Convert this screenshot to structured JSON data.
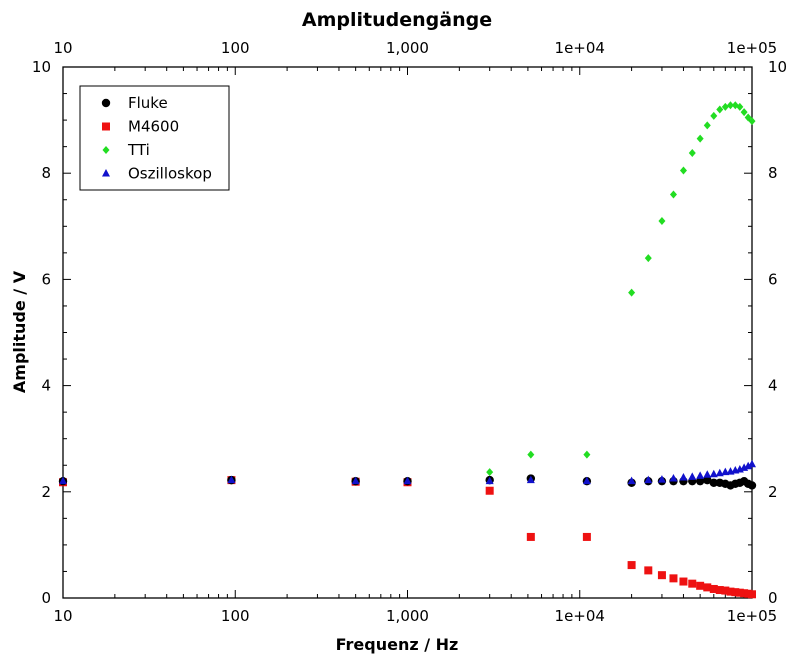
{
  "chart_data": {
    "type": "scatter",
    "title": "Amplitudengänge",
    "xlabel": "Frequenz / Hz",
    "ylabel": "Amplitude / V",
    "xscale": "log",
    "xlim": [
      10,
      100000
    ],
    "ylim": [
      0,
      10
    ],
    "x_tick_labels": [
      "10",
      "100",
      "1,000",
      "1e+04",
      "1e+05"
    ],
    "x_tick_values": [
      10,
      100,
      1000,
      10000,
      100000
    ],
    "y_ticks": [
      0,
      2,
      4,
      6,
      8,
      10
    ],
    "grid": false,
    "legend_position": "top-left",
    "series": [
      {
        "name": "Fluke",
        "marker": "circle",
        "color": "#000000",
        "x": [
          10,
          95,
          500,
          1000,
          3000,
          5200,
          11000,
          20000,
          25000,
          30000,
          35000,
          40000,
          45000,
          50000,
          55000,
          60000,
          65000,
          70000,
          75000,
          80000,
          85000,
          90000,
          95000,
          100000
        ],
        "y": [
          2.2,
          2.22,
          2.2,
          2.2,
          2.22,
          2.25,
          2.2,
          2.17,
          2.2,
          2.2,
          2.2,
          2.2,
          2.2,
          2.2,
          2.22,
          2.17,
          2.17,
          2.15,
          2.12,
          2.15,
          2.17,
          2.2,
          2.15,
          2.12
        ]
      },
      {
        "name": "M4600",
        "marker": "square",
        "color": "#ee1111",
        "x": [
          10,
          95,
          500,
          1000,
          3000,
          5200,
          11000,
          20000,
          25000,
          30000,
          35000,
          40000,
          45000,
          50000,
          55000,
          60000,
          65000,
          70000,
          75000,
          80000,
          85000,
          90000,
          95000,
          100000
        ],
        "y": [
          2.18,
          2.22,
          2.19,
          2.18,
          2.02,
          1.15,
          1.15,
          0.62,
          0.52,
          0.43,
          0.37,
          0.31,
          0.27,
          0.23,
          0.2,
          0.17,
          0.15,
          0.14,
          0.12,
          0.11,
          0.1,
          0.09,
          0.08,
          0.07
        ]
      },
      {
        "name": "TTi",
        "marker": "diamond",
        "color": "#22dd22",
        "x": [
          10,
          95,
          500,
          1000,
          3000,
          5200,
          11000,
          20000,
          25000,
          30000,
          35000,
          40000,
          45000,
          50000,
          55000,
          60000,
          65000,
          70000,
          75000,
          80000,
          85000,
          90000,
          95000,
          100000
        ],
        "y": [
          2.2,
          2.22,
          2.2,
          2.2,
          2.37,
          2.7,
          2.7,
          5.75,
          6.4,
          7.1,
          7.6,
          8.05,
          8.38,
          8.65,
          8.9,
          9.08,
          9.2,
          9.25,
          9.28,
          9.28,
          9.25,
          9.15,
          9.05,
          8.98
        ]
      },
      {
        "name": "Oszilloskop",
        "marker": "triangle",
        "color": "#1111cc",
        "x": [
          10,
          95,
          500,
          1000,
          3000,
          5200,
          11000,
          20000,
          25000,
          30000,
          35000,
          40000,
          45000,
          50000,
          55000,
          60000,
          65000,
          70000,
          75000,
          80000,
          85000,
          90000,
          95000,
          100000
        ],
        "y": [
          2.2,
          2.22,
          2.2,
          2.2,
          2.2,
          2.22,
          2.2,
          2.2,
          2.22,
          2.23,
          2.25,
          2.27,
          2.28,
          2.3,
          2.32,
          2.33,
          2.35,
          2.37,
          2.38,
          2.4,
          2.42,
          2.45,
          2.48,
          2.52
        ]
      }
    ]
  }
}
